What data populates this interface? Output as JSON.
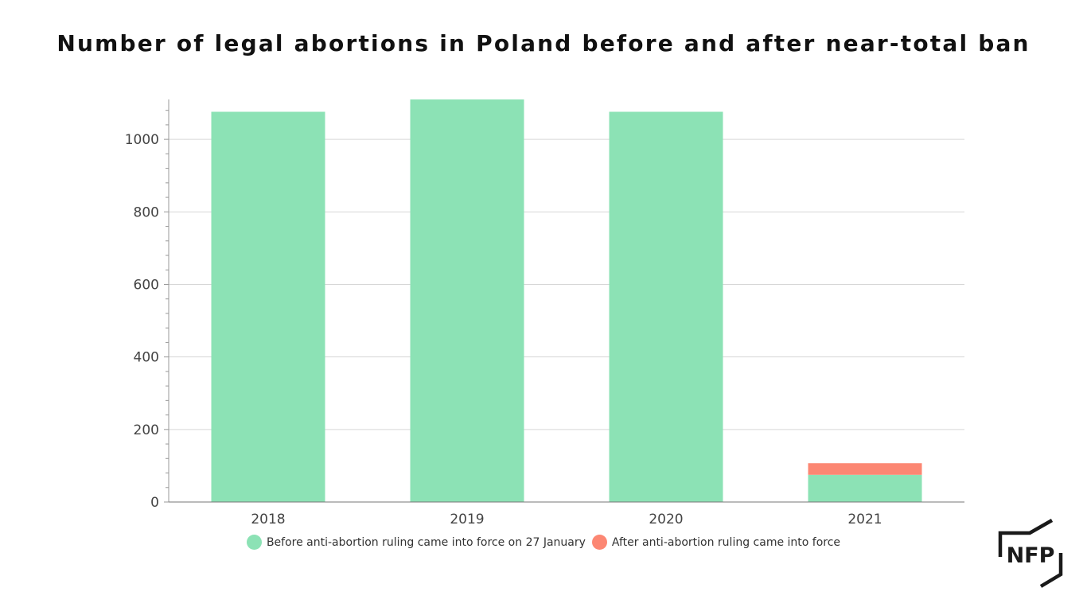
{
  "chart_data": {
    "type": "bar",
    "stacked": true,
    "title": "Number of legal abortions in Poland before and after near-total ban",
    "xlabel": "",
    "ylabel": "",
    "categories": [
      "2018",
      "2019",
      "2020",
      "2021"
    ],
    "series": [
      {
        "name": "Before anti-abortion ruling came into force on 27 January",
        "color": "#8ce2b5",
        "values": [
          1076,
          1110,
          1076,
          75
        ]
      },
      {
        "name": "After anti-abortion ruling came into force",
        "color": "#fc8773",
        "values": [
          0,
          0,
          0,
          32
        ]
      }
    ],
    "ylim": [
      0,
      1110
    ],
    "yticks": [
      0,
      200,
      400,
      600,
      800,
      1000
    ],
    "grid": true,
    "legend": "bottom"
  },
  "logo": {
    "text": "NFP",
    "icon": "nfp-logo-icon"
  }
}
